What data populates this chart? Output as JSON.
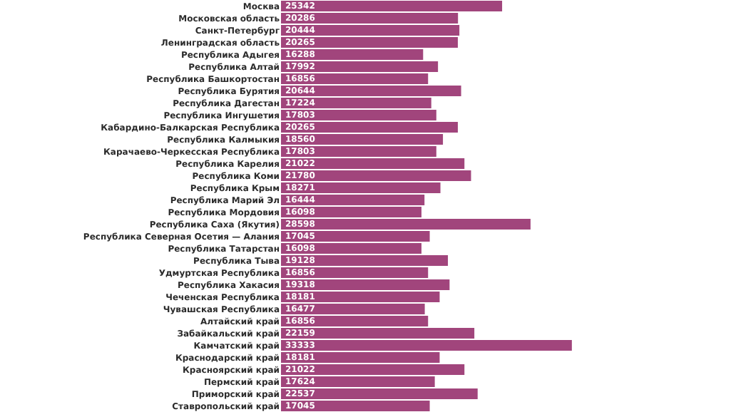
{
  "chart_data": {
    "type": "bar",
    "orientation": "horizontal",
    "data_labels": true,
    "grid": false,
    "legend": false,
    "tick_labels": "y",
    "color": "#a1457c",
    "categories": [
      "Москва",
      "Московская область",
      "Санкт-Петербург",
      "Ленинградская область",
      "Республика Адыгея",
      "Республика Алтай",
      "Республика Башкортостан",
      "Республика Бурятия",
      "Республика Дагестан",
      "Республика Ингушетия",
      "Кабардино-Балкарская Республика",
      "Республика Калмыкия",
      "Карачаево-Черкесская Республика",
      "Республика Карелия",
      "Республика Коми",
      "Республика Крым",
      "Республика Марий Эл",
      "Республика Мордовия",
      "Республика Саха (Якутия)",
      "Республика Северная Осетия — Алания",
      "Республика Татарстан",
      "Республика Тыва",
      "Удмуртская Республика",
      "Республика Хакасия",
      "Чеченская Республика",
      "Чувашская Республика",
      "Алтайский край",
      "Забайкальский край",
      "Камчатский край",
      "Краснодарский край",
      "Красноярский край",
      "Пермский край",
      "Приморский край",
      "Ставропольский край"
    ],
    "values": [
      25342,
      20286,
      20444,
      20265,
      16288,
      17992,
      16856,
      20644,
      17224,
      17803,
      20265,
      18560,
      17803,
      21022,
      21780,
      18271,
      16444,
      16098,
      28598,
      17045,
      16098,
      19128,
      16856,
      19318,
      18181,
      16477,
      16856,
      22159,
      33333,
      18181,
      21022,
      17624,
      22537,
      17045
    ]
  }
}
